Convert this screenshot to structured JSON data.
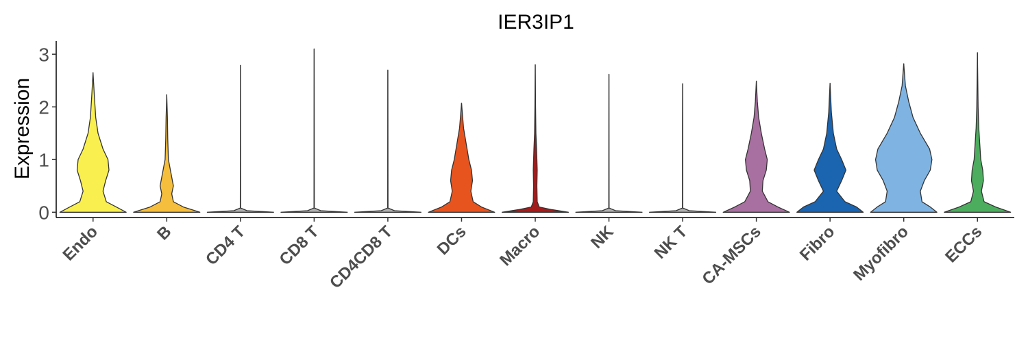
{
  "chart_data": {
    "type": "violin",
    "title": "IER3IP1",
    "xlabel": "",
    "ylabel": "Expression",
    "ylim": [
      -0.1,
      3.25
    ],
    "yticks": [
      0,
      1,
      2,
      3
    ],
    "legend": "none",
    "categories": [
      "Endo",
      "B",
      "CD4 T",
      "CD8 T",
      "CD4CD8 T",
      "DCs",
      "Macro",
      "NK",
      "NK T",
      "CA-MSCs",
      "Fibro",
      "Myofibro",
      "ECCs"
    ],
    "colors": [
      "#F9F04F",
      "#F5BE3C",
      "#B0B0B0",
      "#B0B0B0",
      "#B0B0B0",
      "#E8541E",
      "#A31C1C",
      "#B0B0B0",
      "#B0B0B0",
      "#A870A0",
      "#1A64B0",
      "#7EB3E2",
      "#4DAD5F"
    ],
    "max_values": [
      2.65,
      2.23,
      2.79,
      3.1,
      2.7,
      2.07,
      2.8,
      2.62,
      2.44,
      2.49,
      2.45,
      2.82,
      3.03
    ],
    "density_profiles": [
      [
        [
          0,
          1.0
        ],
        [
          0.1,
          0.7
        ],
        [
          0.2,
          0.4
        ],
        [
          0.4,
          0.3
        ],
        [
          0.6,
          0.38
        ],
        [
          0.8,
          0.48
        ],
        [
          1.0,
          0.45
        ],
        [
          1.2,
          0.3
        ],
        [
          1.5,
          0.15
        ],
        [
          1.8,
          0.08
        ],
        [
          2.2,
          0.04
        ],
        [
          2.65,
          0.0
        ]
      ],
      [
        [
          0,
          1.0
        ],
        [
          0.1,
          0.5
        ],
        [
          0.2,
          0.2
        ],
        [
          0.35,
          0.15
        ],
        [
          0.5,
          0.2
        ],
        [
          0.7,
          0.14
        ],
        [
          1.0,
          0.05
        ],
        [
          1.4,
          0.03
        ],
        [
          1.8,
          0.02
        ],
        [
          2.23,
          0.0
        ]
      ],
      [
        [
          0,
          1.0
        ],
        [
          0.03,
          0.2
        ],
        [
          0.08,
          0.005
        ],
        [
          2.79,
          0.0
        ]
      ],
      [
        [
          0,
          1.0
        ],
        [
          0.03,
          0.2
        ],
        [
          0.08,
          0.005
        ],
        [
          3.1,
          0.0
        ]
      ],
      [
        [
          0,
          1.0
        ],
        [
          0.03,
          0.2
        ],
        [
          0.08,
          0.005
        ],
        [
          2.7,
          0.0
        ]
      ],
      [
        [
          0,
          1.0
        ],
        [
          0.1,
          0.6
        ],
        [
          0.2,
          0.35
        ],
        [
          0.4,
          0.28
        ],
        [
          0.6,
          0.33
        ],
        [
          0.8,
          0.3
        ],
        [
          1.0,
          0.22
        ],
        [
          1.3,
          0.14
        ],
        [
          1.6,
          0.06
        ],
        [
          2.07,
          0.0
        ]
      ],
      [
        [
          0,
          1.0
        ],
        [
          0.05,
          0.5
        ],
        [
          0.1,
          0.12
        ],
        [
          0.2,
          0.06
        ],
        [
          0.5,
          0.05
        ],
        [
          0.8,
          0.06
        ],
        [
          1.2,
          0.04
        ],
        [
          1.5,
          0.02
        ],
        [
          2.0,
          0.01
        ],
        [
          2.8,
          0.0
        ]
      ],
      [
        [
          0,
          1.0
        ],
        [
          0.03,
          0.2
        ],
        [
          0.08,
          0.005
        ],
        [
          2.62,
          0.0
        ]
      ],
      [
        [
          0,
          1.0
        ],
        [
          0.03,
          0.2
        ],
        [
          0.08,
          0.005
        ],
        [
          1.6,
          0.004
        ],
        [
          2.44,
          0.0
        ]
      ],
      [
        [
          0,
          1.0
        ],
        [
          0.1,
          0.65
        ],
        [
          0.2,
          0.35
        ],
        [
          0.4,
          0.18
        ],
        [
          0.6,
          0.2
        ],
        [
          0.8,
          0.3
        ],
        [
          1.0,
          0.33
        ],
        [
          1.2,
          0.25
        ],
        [
          1.5,
          0.15
        ],
        [
          1.8,
          0.07
        ],
        [
          2.1,
          0.03
        ],
        [
          2.49,
          0.0
        ]
      ],
      [
        [
          0,
          1.0
        ],
        [
          0.1,
          0.8
        ],
        [
          0.2,
          0.45
        ],
        [
          0.4,
          0.2
        ],
        [
          0.6,
          0.35
        ],
        [
          0.8,
          0.48
        ],
        [
          1.0,
          0.35
        ],
        [
          1.2,
          0.2
        ],
        [
          1.5,
          0.1
        ],
        [
          1.9,
          0.04
        ],
        [
          2.45,
          0.0
        ]
      ],
      [
        [
          0,
          1.0
        ],
        [
          0.1,
          0.8
        ],
        [
          0.2,
          0.55
        ],
        [
          0.4,
          0.5
        ],
        [
          0.6,
          0.62
        ],
        [
          0.8,
          0.8
        ],
        [
          1.0,
          0.85
        ],
        [
          1.2,
          0.78
        ],
        [
          1.5,
          0.5
        ],
        [
          1.8,
          0.28
        ],
        [
          2.1,
          0.15
        ],
        [
          2.4,
          0.05
        ],
        [
          2.82,
          0.0
        ]
      ],
      [
        [
          0,
          1.0
        ],
        [
          0.1,
          0.55
        ],
        [
          0.2,
          0.2
        ],
        [
          0.4,
          0.12
        ],
        [
          0.6,
          0.18
        ],
        [
          0.8,
          0.16
        ],
        [
          1.0,
          0.1
        ],
        [
          1.3,
          0.07
        ],
        [
          1.6,
          0.04
        ],
        [
          2.0,
          0.02
        ],
        [
          3.03,
          0.0
        ]
      ]
    ]
  }
}
